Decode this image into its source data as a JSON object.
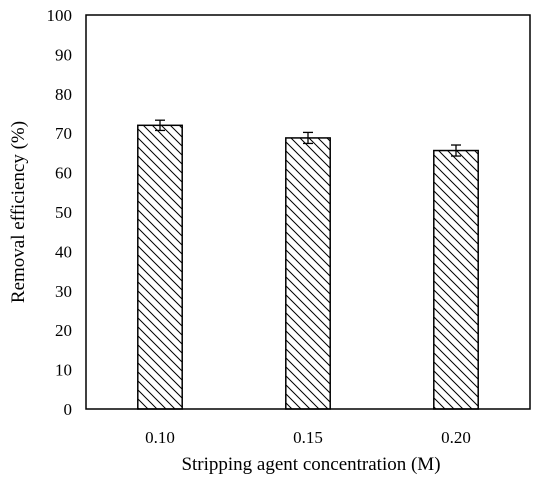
{
  "chart_data": {
    "type": "bar",
    "title": "",
    "xlabel": "Stripping agent concentration (M)",
    "ylabel": "Removal efficiency (%)",
    "categories": [
      "0.10",
      "0.15",
      "0.20"
    ],
    "values": [
      72.0,
      68.8,
      65.6
    ],
    "error": [
      1.3,
      1.4,
      1.4
    ],
    "ylim": [
      0,
      100
    ],
    "yticks": [
      "0",
      "10",
      "20",
      "30",
      "40",
      "50",
      "60",
      "70",
      "80",
      "90",
      "100"
    ],
    "grid": false,
    "legend": "none",
    "bar_fill": "diagonal-hatch",
    "colors": {
      "bar_edge": "#000000",
      "hatch": "#000000",
      "background": "#ffffff"
    }
  }
}
